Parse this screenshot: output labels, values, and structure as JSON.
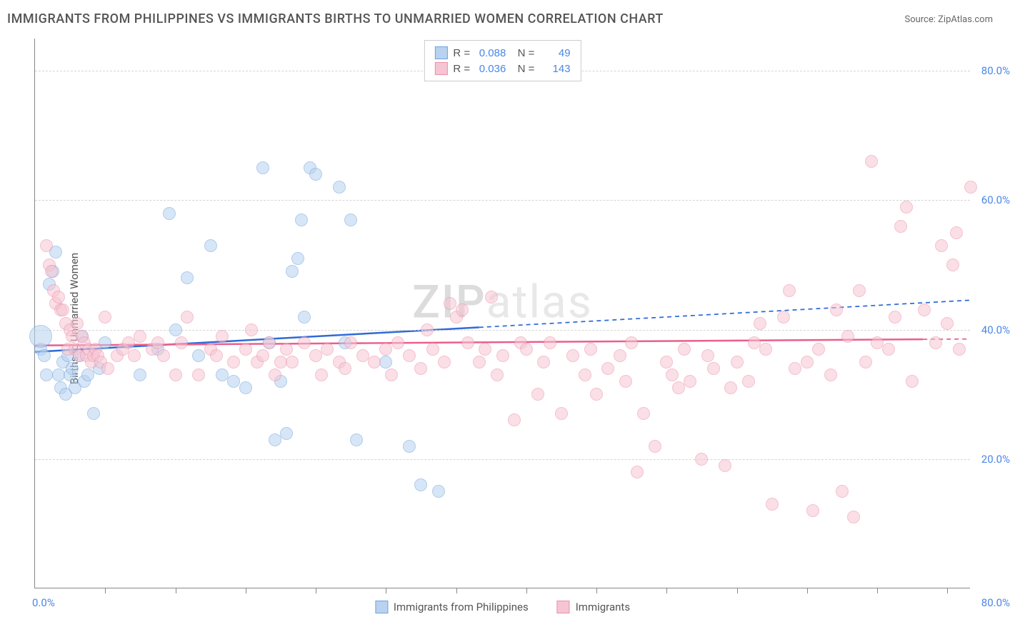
{
  "title": "IMMIGRANTS FROM PHILIPPINES VS IMMIGRANTS BIRTHS TO UNMARRIED WOMEN CORRELATION CHART",
  "source": "Source: ZipAtlas.com",
  "ylabel": "Births to Unmarried Women",
  "watermark_a": "ZIP",
  "watermark_b": "atlas",
  "chart": {
    "type": "scatter",
    "xlim": [
      0,
      80
    ],
    "ylim": [
      0,
      85
    ],
    "xtick_left_label": "0.0%",
    "xtick_right_label": "80.0%",
    "xticks_inner": [
      6,
      12,
      18,
      24,
      30,
      36,
      42,
      48,
      54,
      60,
      66,
      72,
      78
    ],
    "yticks": [
      {
        "v": 20,
        "label": "20.0%"
      },
      {
        "v": 40,
        "label": "40.0%"
      },
      {
        "v": 60,
        "label": "60.0%"
      },
      {
        "v": 80,
        "label": "80.0%"
      }
    ],
    "background_color": "#ffffff",
    "grid_color": "#d5d5d5",
    "axis_color": "#888888",
    "tick_label_color": "#4a86e8",
    "marker_radius": 9,
    "marker_opacity": 0.55,
    "series": [
      {
        "id": "philippines",
        "label": "Immigrants from Philippines",
        "fill": "#b8d2f0",
        "stroke": "#6fa3df",
        "trend": {
          "x1": 0,
          "y1": 36.5,
          "x2": 80,
          "y2": 44.5,
          "color": "#2f6bd6",
          "width": 2.5,
          "solid_until_x": 38
        },
        "R": "0.088",
        "N": "49",
        "points": [
          [
            0.5,
            37
          ],
          [
            0.8,
            36
          ],
          [
            1.0,
            33
          ],
          [
            1.2,
            47
          ],
          [
            1.5,
            49
          ],
          [
            1.8,
            52
          ],
          [
            2.0,
            33
          ],
          [
            2.2,
            31
          ],
          [
            2.4,
            35
          ],
          [
            2.6,
            30
          ],
          [
            2.8,
            36
          ],
          [
            3.0,
            33
          ],
          [
            3.2,
            34
          ],
          [
            3.4,
            31
          ],
          [
            3.8,
            36
          ],
          [
            4.0,
            39
          ],
          [
            4.2,
            32
          ],
          [
            4.5,
            33
          ],
          [
            5.0,
            27
          ],
          [
            5.5,
            34
          ],
          [
            6.0,
            38
          ],
          [
            9.0,
            33
          ],
          [
            10.5,
            37
          ],
          [
            11.5,
            58
          ],
          [
            12.0,
            40
          ],
          [
            13.0,
            48
          ],
          [
            14.0,
            36
          ],
          [
            15.0,
            53
          ],
          [
            16.0,
            33
          ],
          [
            17.0,
            32
          ],
          [
            18.0,
            31
          ],
          [
            19.5,
            65
          ],
          [
            20.0,
            38
          ],
          [
            20.5,
            23
          ],
          [
            21.0,
            32
          ],
          [
            21.5,
            24
          ],
          [
            22.0,
            49
          ],
          [
            22.5,
            51
          ],
          [
            22.8,
            57
          ],
          [
            23.0,
            42
          ],
          [
            23.5,
            65
          ],
          [
            24.0,
            64
          ],
          [
            26.0,
            62
          ],
          [
            26.5,
            38
          ],
          [
            27.0,
            57
          ],
          [
            27.5,
            23
          ],
          [
            30.0,
            35
          ],
          [
            32.0,
            22
          ],
          [
            33.0,
            16
          ],
          [
            34.5,
            15
          ]
        ],
        "big_point": {
          "x": 0.5,
          "y": 39,
          "r": 16
        }
      },
      {
        "id": "immigrants",
        "label": "Immigrants",
        "fill": "#f6c5d3",
        "stroke": "#ec8fa9",
        "trend": {
          "x1": 0,
          "y1": 37.5,
          "x2": 80,
          "y2": 38.5,
          "color": "#ea5f8d",
          "width": 2.5,
          "solid_until_x": 76
        },
        "R": "0.036",
        "N": "143",
        "points": [
          [
            1,
            53
          ],
          [
            1.2,
            50
          ],
          [
            1.4,
            49
          ],
          [
            1.6,
            46
          ],
          [
            1.8,
            44
          ],
          [
            2.0,
            45
          ],
          [
            2.2,
            43
          ],
          [
            2.4,
            43
          ],
          [
            2.6,
            41
          ],
          [
            2.8,
            37
          ],
          [
            3.0,
            40
          ],
          [
            3.2,
            39
          ],
          [
            3.4,
            37
          ],
          [
            3.6,
            41
          ],
          [
            3.8,
            36
          ],
          [
            4.0,
            39
          ],
          [
            4.2,
            38
          ],
          [
            4.4,
            36
          ],
          [
            4.6,
            37
          ],
          [
            4.8,
            35
          ],
          [
            5.0,
            36
          ],
          [
            5.2,
            37
          ],
          [
            5.4,
            36
          ],
          [
            5.6,
            35
          ],
          [
            6.0,
            42
          ],
          [
            6.2,
            34
          ],
          [
            7.0,
            36
          ],
          [
            7.5,
            37
          ],
          [
            8.0,
            38
          ],
          [
            8.5,
            36
          ],
          [
            9.0,
            39
          ],
          [
            10,
            37
          ],
          [
            10.5,
            38
          ],
          [
            11,
            36
          ],
          [
            12,
            33
          ],
          [
            12.5,
            38
          ],
          [
            13,
            42
          ],
          [
            14,
            33
          ],
          [
            15,
            37
          ],
          [
            15.5,
            36
          ],
          [
            16,
            39
          ],
          [
            17,
            35
          ],
          [
            18,
            37
          ],
          [
            18.5,
            40
          ],
          [
            19,
            35
          ],
          [
            19.5,
            36
          ],
          [
            20,
            38
          ],
          [
            20.5,
            33
          ],
          [
            21,
            35
          ],
          [
            21.5,
            37
          ],
          [
            22,
            35
          ],
          [
            23,
            38
          ],
          [
            24,
            36
          ],
          [
            24.5,
            33
          ],
          [
            25,
            37
          ],
          [
            26,
            35
          ],
          [
            26.5,
            34
          ],
          [
            27,
            38
          ],
          [
            28,
            36
          ],
          [
            29,
            35
          ],
          [
            30,
            37
          ],
          [
            30.5,
            33
          ],
          [
            31,
            38
          ],
          [
            32,
            36
          ],
          [
            33,
            34
          ],
          [
            33.5,
            40
          ],
          [
            34,
            37
          ],
          [
            35,
            35
          ],
          [
            35.5,
            44
          ],
          [
            36,
            42
          ],
          [
            36.5,
            43
          ],
          [
            37,
            38
          ],
          [
            38,
            35
          ],
          [
            38.5,
            37
          ],
          [
            39,
            45
          ],
          [
            39.5,
            33
          ],
          [
            40,
            36
          ],
          [
            41,
            26
          ],
          [
            41.5,
            38
          ],
          [
            42,
            37
          ],
          [
            43,
            30
          ],
          [
            43.5,
            35
          ],
          [
            44,
            38
          ],
          [
            45,
            27
          ],
          [
            46,
            36
          ],
          [
            47,
            33
          ],
          [
            47.5,
            37
          ],
          [
            48,
            30
          ],
          [
            49,
            34
          ],
          [
            50,
            36
          ],
          [
            50.5,
            32
          ],
          [
            51,
            38
          ],
          [
            51.5,
            18
          ],
          [
            52,
            27
          ],
          [
            53,
            22
          ],
          [
            54,
            35
          ],
          [
            54.5,
            33
          ],
          [
            55,
            31
          ],
          [
            55.5,
            37
          ],
          [
            56,
            32
          ],
          [
            57,
            20
          ],
          [
            57.5,
            36
          ],
          [
            58,
            34
          ],
          [
            59,
            19
          ],
          [
            59.5,
            31
          ],
          [
            60,
            35
          ],
          [
            61,
            32
          ],
          [
            61.5,
            38
          ],
          [
            62,
            41
          ],
          [
            62.5,
            37
          ],
          [
            63,
            13
          ],
          [
            64,
            42
          ],
          [
            64.5,
            46
          ],
          [
            65,
            34
          ],
          [
            66,
            35
          ],
          [
            66.5,
            12
          ],
          [
            67,
            37
          ],
          [
            68,
            33
          ],
          [
            68.5,
            43
          ],
          [
            69,
            15
          ],
          [
            69.5,
            39
          ],
          [
            70,
            11
          ],
          [
            70.5,
            46
          ],
          [
            71,
            35
          ],
          [
            71.5,
            66
          ],
          [
            72,
            38
          ],
          [
            73,
            37
          ],
          [
            73.5,
            42
          ],
          [
            74,
            56
          ],
          [
            74.5,
            59
          ],
          [
            75,
            32
          ],
          [
            76,
            43
          ],
          [
            77,
            38
          ],
          [
            77.5,
            53
          ],
          [
            78,
            41
          ],
          [
            78.5,
            50
          ],
          [
            78.8,
            55
          ],
          [
            79,
            37
          ],
          [
            80,
            62
          ]
        ]
      }
    ]
  }
}
